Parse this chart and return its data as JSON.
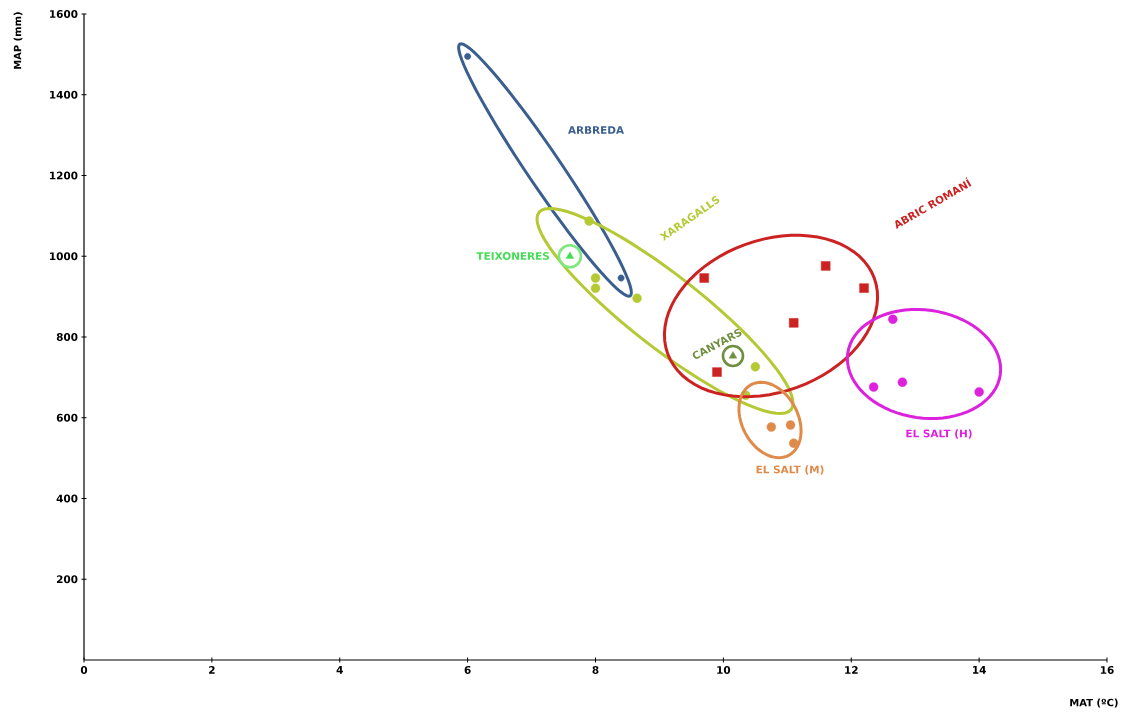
{
  "chart_data": {
    "type": "scatter",
    "xlabel": "MAT (ºC)",
    "ylabel": "MAP (mm)",
    "xlim": [
      0,
      16
    ],
    "ylim": [
      0,
      1600
    ],
    "xticks": [
      0,
      2,
      4,
      6,
      8,
      10,
      12,
      14,
      16
    ],
    "yticks": [
      200,
      400,
      600,
      800,
      1000,
      1200,
      1400,
      1600
    ],
    "series": [
      {
        "name": "ARBREDA",
        "color": "#3a5f8f",
        "marker": "circle",
        "x": [
          6.0,
          8.4
        ],
        "values": [
          1495,
          946
        ]
      },
      {
        "name": "XARAGALLS",
        "color": "#b5c934",
        "marker": "circle",
        "x": [
          7.9,
          8.0,
          8.0,
          8.65,
          10.5,
          10.35
        ],
        "values": [
          1087,
          946,
          921,
          896,
          726,
          656
        ]
      },
      {
        "name": "TEIXONERES",
        "color": "#44dd55",
        "marker": "triangle",
        "x": [
          7.6
        ],
        "values": [
          1000
        ]
      },
      {
        "name": "ABRIC ROMANÍ",
        "color": "#cc2222",
        "marker": "square",
        "x": [
          9.7,
          11.6,
          12.2,
          11.1,
          9.9
        ],
        "values": [
          946,
          976,
          921,
          835,
          713
        ]
      },
      {
        "name": "CANYARS",
        "color": "#6f8f3f",
        "marker": "triangle",
        "x": [
          10.15
        ],
        "values": [
          753
        ]
      },
      {
        "name": "EL SALT (M)",
        "color": "#e08a4a",
        "marker": "circle",
        "x": [
          10.75,
          11.05,
          11.1
        ],
        "values": [
          577,
          582,
          537
        ]
      },
      {
        "name": "EL SALT (H)",
        "color": "#dd22dd",
        "marker": "circle",
        "x": [
          12.65,
          12.35,
          12.8,
          14.0
        ],
        "values": [
          844,
          676,
          688,
          664
        ]
      }
    ]
  }
}
